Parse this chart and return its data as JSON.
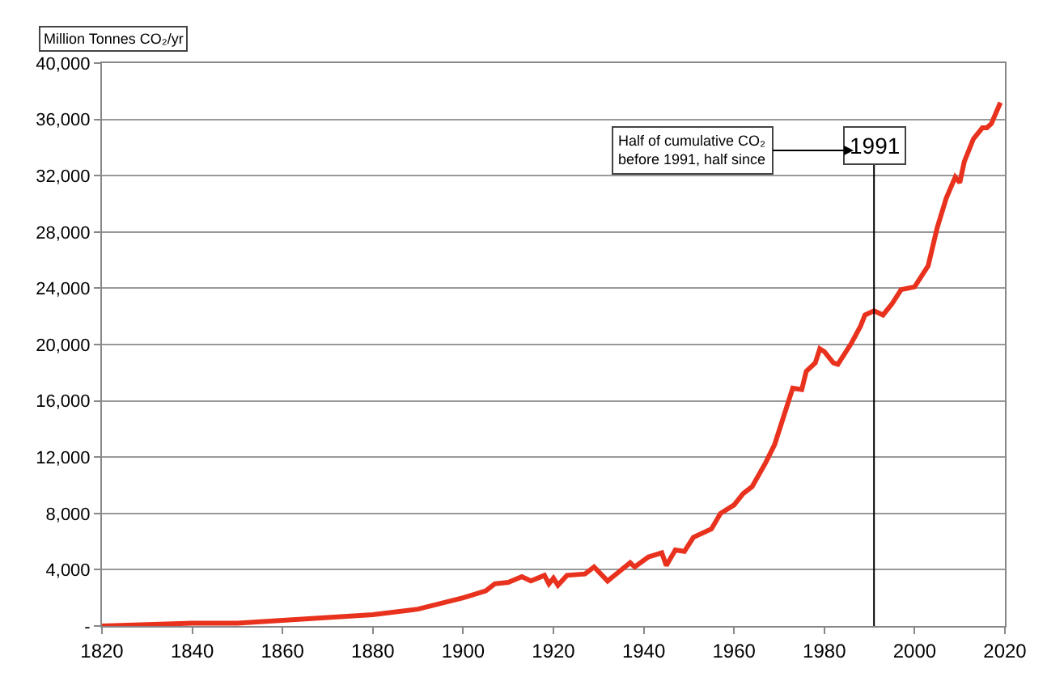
{
  "chart_data": {
    "type": "line",
    "ylabel": "Million Tonnes CO₂/yr",
    "x": [
      1820,
      1830,
      1840,
      1850,
      1860,
      1870,
      1880,
      1890,
      1900,
      1905,
      1907,
      1910,
      1913,
      1915,
      1918,
      1919,
      1920,
      1921,
      1923,
      1927,
      1929,
      1932,
      1937,
      1938,
      1941,
      1944,
      1945,
      1947,
      1949,
      1951,
      1955,
      1957,
      1960,
      1962,
      1964,
      1967,
      1969,
      1971,
      1972,
      1973,
      1975,
      1976,
      1978,
      1979,
      1980,
      1982,
      1983,
      1986,
      1988,
      1989,
      1991,
      1993,
      1995,
      1997,
      2000,
      2003,
      2005,
      2007,
      2009,
      2010,
      2011,
      2013,
      2015,
      2016,
      2017,
      2019
    ],
    "series": [
      {
        "color": "#e8321e",
        "values": [
          0,
          100,
          200,
          200,
          400,
          600,
          800,
          1200,
          2000,
          2500,
          3000,
          3100,
          3500,
          3200,
          3600,
          3000,
          3400,
          2900,
          3600,
          3700,
          4200,
          3200,
          4500,
          4200,
          4900,
          5200,
          4300,
          5400,
          5300,
          6300,
          6900,
          8000,
          8600,
          9400,
          9900,
          11600,
          12900,
          14900,
          15900,
          16900,
          16800,
          18100,
          18700,
          19700,
          19500,
          18700,
          18600,
          20100,
          21300,
          22100,
          22400,
          22100,
          22900,
          23900,
          24100,
          25600,
          28300,
          30400,
          31900,
          31500,
          33000,
          34600,
          35400,
          35400,
          35700,
          37200
        ]
      }
    ],
    "xlim": [
      1820,
      2020
    ],
    "xticks": [
      1820,
      1840,
      1860,
      1880,
      1900,
      1920,
      1940,
      1960,
      1980,
      2000,
      2020
    ],
    "ylim": [
      0,
      40000
    ],
    "yticks": [
      {
        "value": 0,
        "label": "-"
      },
      {
        "value": 4000,
        "label": "4,000"
      },
      {
        "value": 8000,
        "label": "8,000"
      },
      {
        "value": 12000,
        "label": "12,000"
      },
      {
        "value": 16000,
        "label": "16,000"
      },
      {
        "value": 20000,
        "label": "20,000"
      },
      {
        "value": 24000,
        "label": "24,000"
      },
      {
        "value": 28000,
        "label": "28,000"
      },
      {
        "value": 32000,
        "label": "32,000"
      },
      {
        "value": 36000,
        "label": "36,000"
      },
      {
        "value": 40000,
        "label": "40,000"
      }
    ],
    "grid": "y",
    "marker": "none",
    "line_style": "solid",
    "ref_lines": [
      {
        "axis": "x",
        "value": 1991,
        "label": "1991",
        "color": "#000000"
      }
    ],
    "annotations": [
      "Half of cumulative CO₂\nbefore 1991, half since"
    ]
  }
}
